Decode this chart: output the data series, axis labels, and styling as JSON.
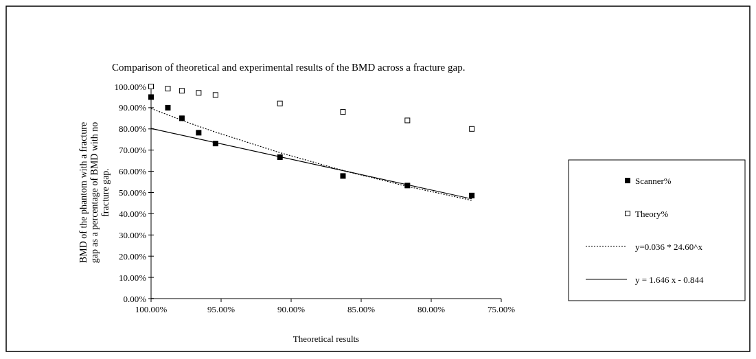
{
  "chart_data": {
    "type": "scatter",
    "title": "Comparison of theoretical and experimental results of the BMD across a fracture gap.",
    "xlabel": "Theoretical results",
    "ylabel": "BMD of the phantom with a fracture gap as a percentage of BMD with no fracture gap.",
    "xlim": [
      100,
      75
    ],
    "xticks": [
      {
        "value": 100,
        "label": "100.00%"
      },
      {
        "value": 95,
        "label": "95.00%"
      },
      {
        "value": 90,
        "label": "90.00%"
      },
      {
        "value": 85,
        "label": "85.00%"
      },
      {
        "value": 80,
        "label": "80.00%"
      },
      {
        "value": 75,
        "label": "75.00%"
      }
    ],
    "ylim": [
      0,
      100
    ],
    "yticks": [
      {
        "value": 0,
        "label": "0.00%"
      },
      {
        "value": 10,
        "label": "10.00%"
      },
      {
        "value": 20,
        "label": "20.00%"
      },
      {
        "value": 30,
        "label": "30.00%"
      },
      {
        "value": 40,
        "label": "40.00%"
      },
      {
        "value": 50,
        "label": "50.00%"
      },
      {
        "value": 60,
        "label": "60.00%"
      },
      {
        "value": 70,
        "label": "70.00%"
      },
      {
        "value": 80,
        "label": "80.00%"
      },
      {
        "value": 90,
        "label": "90.00%"
      },
      {
        "value": 100,
        "label": "100.00%"
      }
    ],
    "x": [
      100,
      98.8,
      97.8,
      96.6,
      95.4,
      90.8,
      86.3,
      81.7,
      77.1
    ],
    "series": [
      {
        "name": "Scanner%",
        "color": "#000000",
        "marker": "square",
        "values": [
          95.0,
          90.0,
          85.0,
          78.2,
          73.1,
          66.7,
          57.8,
          53.3,
          48.6
        ]
      },
      {
        "name": "Theory%",
        "color": "#ffffff",
        "marker": "square",
        "values": [
          100,
          99,
          98,
          97,
          96,
          92,
          88,
          84,
          80
        ]
      },
      {
        "name": "y=0.036 * 24.60^x",
        "type": "line",
        "color": "#000000",
        "marker": "none",
        "line_style": "dotted",
        "values": [
          89.6,
          86.6,
          84.1,
          81.2,
          78.5,
          68.8,
          60.4,
          52.9,
          46.3
        ]
      },
      {
        "name": "y = 1.646 x - 0.844",
        "type": "line",
        "color": "#000000",
        "marker": "none",
        "line_style": "solid",
        "x": [
          100,
          77.1
        ],
        "values": [
          80.2,
          47.0
        ]
      }
    ],
    "legend": "right",
    "grid": false
  }
}
